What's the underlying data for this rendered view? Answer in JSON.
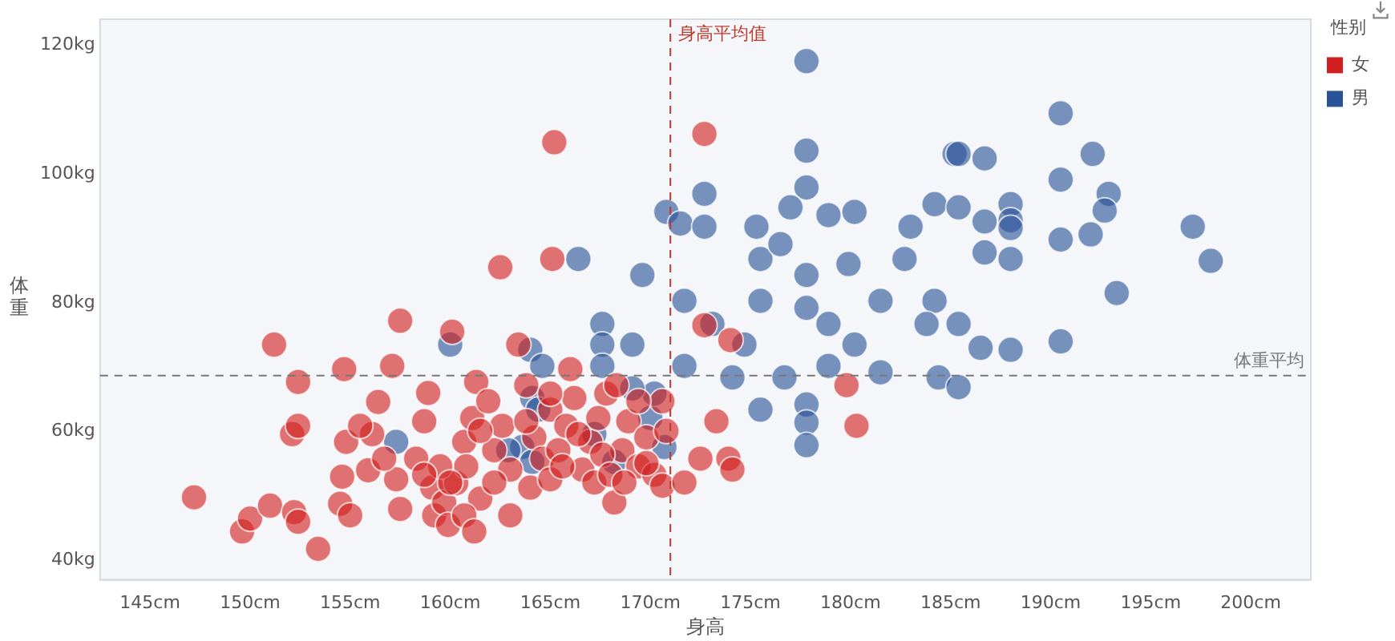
{
  "chart_data": {
    "type": "scatter",
    "xlabel": "身高",
    "ylabel": "体重",
    "legend_title": "性别",
    "legend": "top right",
    "marker": "circle",
    "grid": false,
    "xlim": [
      142.5,
      203
    ],
    "ylim": [
      37,
      124
    ],
    "xticks": [
      {
        "value": 145,
        "label": "145cm"
      },
      {
        "value": 150,
        "label": "150cm"
      },
      {
        "value": 155,
        "label": "155cm"
      },
      {
        "value": 160,
        "label": "160cm"
      },
      {
        "value": 165,
        "label": "165cm"
      },
      {
        "value": 170,
        "label": "170cm"
      },
      {
        "value": 175,
        "label": "175cm"
      },
      {
        "value": 180,
        "label": "180cm"
      },
      {
        "value": 185,
        "label": "185cm"
      },
      {
        "value": 190,
        "label": "190cm"
      },
      {
        "value": 195,
        "label": "195cm"
      },
      {
        "value": 200,
        "label": "200cm"
      }
    ],
    "yticks": [
      {
        "value": 40,
        "label": "40kg"
      },
      {
        "value": 60,
        "label": "60kg"
      },
      {
        "value": 80,
        "label": "80kg"
      },
      {
        "value": 100,
        "label": "100kg"
      },
      {
        "value": 120,
        "label": "120kg"
      }
    ],
    "ref_lines": [
      {
        "axis": "x",
        "value": 171,
        "label": "身高平均值",
        "color": "#c0392b",
        "line_style": "dashed"
      },
      {
        "axis": "y",
        "value": 68.7,
        "label": "体重平均",
        "color": "#777777",
        "line_style": "dashed"
      }
    ],
    "series": [
      {
        "name": "女",
        "color": "#d21f1f",
        "x": [
          147.2,
          149.6,
          150,
          151,
          152.2,
          152.4,
          153.4,
          152.1,
          152.4,
          151.2,
          154.8,
          154.6,
          154.5,
          155,
          155.9,
          156.1,
          156.4,
          157.1,
          157.5,
          157.3,
          158.3,
          158.7,
          158.9,
          159.1,
          159.2,
          159.7,
          159.9,
          160.3,
          160.7,
          160.8,
          161.1,
          161.3,
          161.5,
          161.9,
          162.2,
          162.6,
          163,
          163.4,
          163.8,
          164.2,
          164.6,
          165,
          165.2,
          165.4,
          165.8,
          166.2,
          166.6,
          167,
          167.4,
          167.8,
          168.2,
          168.6,
          168.9,
          169.4,
          169.8,
          170.2,
          170.6,
          170.8,
          172.7,
          172.5,
          173.3,
          173.9,
          174.1,
          170.6,
          171.7,
          180.3,
          179.8,
          172.7,
          174,
          152.4,
          157.5,
          160.1,
          162.5,
          165.1,
          161.5,
          162.2,
          163,
          164,
          165,
          165.6,
          166.4,
          167.2,
          167.6,
          168,
          168.7,
          169.8,
          169.4,
          168.3,
          166,
          165,
          163.8,
          159.5,
          158.7,
          160.7,
          161.2,
          160,
          156.7,
          155.5,
          154.7
        ],
        "values": [
          49.8,
          44.5,
          46.5,
          48.5,
          47.5,
          46,
          41.8,
          59.6,
          60.9,
          73.5,
          58.4,
          53,
          48.8,
          47,
          54,
          59.6,
          64.6,
          70.2,
          48,
          52.6,
          55.8,
          61.6,
          66,
          51.3,
          47,
          49,
          45.5,
          52,
          58.4,
          54.6,
          62.1,
          67.7,
          49.6,
          64.7,
          57.1,
          60.9,
          54.1,
          73.5,
          67.2,
          59.1,
          55.8,
          63.4,
          104.9,
          57.1,
          60.9,
          65.2,
          54.1,
          58.4,
          62.1,
          65.9,
          49,
          57.1,
          61.6,
          54.6,
          59.1,
          53.3,
          64.7,
          60.1,
          106.2,
          55.8,
          61.6,
          55.8,
          54.1,
          51.6,
          52.1,
          60.9,
          67.2,
          76.5,
          74.2,
          67.7,
          77.2,
          75.5,
          85.5,
          86.8,
          60.1,
          52.1,
          47,
          51.3,
          52.6,
          54.6,
          59.6,
          52.1,
          56.4,
          53.3,
          52.1,
          55.1,
          64.7,
          67.2,
          69.7,
          65.9,
          61.6,
          54.6,
          53.3,
          47,
          44.5,
          52.1,
          55.8,
          60.9,
          69.7
        ]
      },
      {
        "name": "男",
        "color": "#2a5298",
        "x": [
          177.8,
          177.8,
          177.8,
          172.7,
          170.8,
          171.5,
          172.7,
          175.3,
          177,
          178.9,
          180.2,
          184.2,
          185.2,
          190.5,
          185.4,
          186.7,
          192.1,
          190.5,
          192.9,
          192.7,
          185.4,
          186.7,
          188,
          188,
          188,
          190.5,
          192,
          197.1,
          198,
          193.3,
          186.5,
          188,
          190.5,
          184.4,
          185.4,
          184.2,
          185.4,
          186.7,
          188,
          177.8,
          177.8,
          177.8,
          175.5,
          173.2,
          170,
          170.7,
          167.2,
          168.2,
          165.4,
          163.6,
          157.3,
          160,
          164,
          162.9,
          164.1,
          166.4,
          167.6,
          167.6,
          167.6,
          169.1,
          170.2,
          173.1,
          174.7,
          175.5,
          175.5,
          176.5,
          177.8,
          177.8,
          178.9,
          180.2,
          178.9,
          181.5,
          182.7,
          183,
          181.5,
          183.8,
          179.9,
          176.7,
          174.1,
          171.7,
          171.7,
          169.6,
          169.1,
          165.6,
          164.6,
          164.1,
          164.4
        ],
        "values": [
          117.5,
          103.6,
          97.9,
          96.9,
          94.1,
          92.3,
          91.8,
          91.8,
          94.8,
          93.6,
          94.1,
          95.3,
          103.1,
          109.4,
          103.1,
          102.4,
          103.1,
          99.1,
          96.9,
          94.3,
          94.8,
          92.6,
          95.3,
          92.8,
          91.6,
          89.8,
          90.6,
          91.8,
          86.5,
          81.5,
          73,
          72.7,
          74,
          68.4,
          66.9,
          80.3,
          76.7,
          87.8,
          86.8,
          64.2,
          61.4,
          57.9,
          63.4,
          null,
          62.1,
          57.6,
          59.6,
          55.3,
          null,
          57.6,
          58.4,
          73.5,
          72.7,
          57.1,
          55.3,
          86.8,
          76.7,
          73.5,
          70.2,
          73.5,
          65.9,
          76.7,
          73.5,
          80.3,
          86.8,
          89.1,
          84.3,
          79.2,
          76.7,
          73.5,
          70.2,
          69.2,
          86.8,
          91.8,
          80.3,
          76.7,
          86,
          68.4,
          68.4,
          70.2,
          80.3,
          84.3,
          66.7,
          null,
          70.2,
          65.2,
          63.4
        ]
      }
    ]
  }
}
